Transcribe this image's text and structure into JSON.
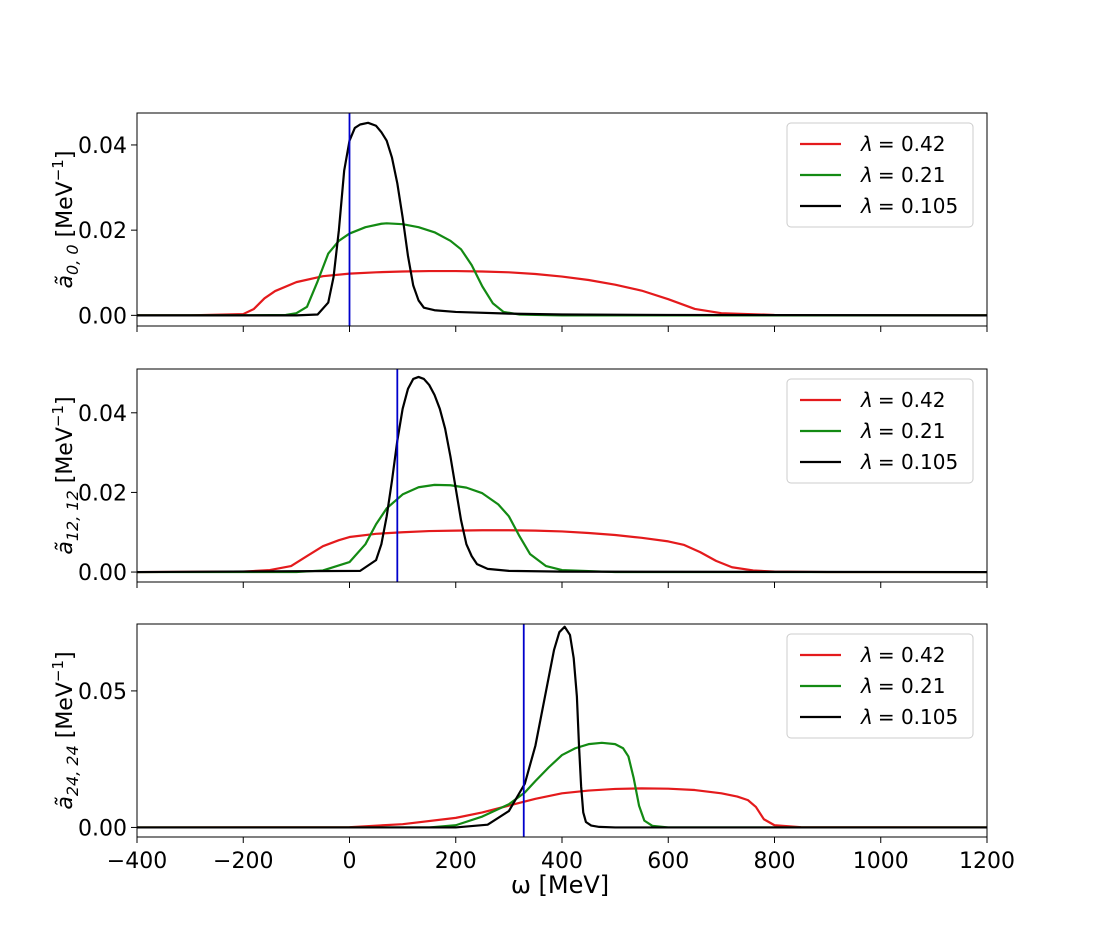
{
  "chart_data": {
    "type": "line",
    "xlabel": "ω [MeV]",
    "x_ticks": [
      "−400",
      "−200",
      "0",
      "200",
      "400",
      "600",
      "800",
      "1000",
      "1200"
    ],
    "xlim": [
      -400,
      1200
    ],
    "legend_position": "top-right",
    "series_colors": [
      "#e41a1c",
      "#138a13",
      "#000000"
    ],
    "vline_color": "#0000cc",
    "panels": [
      {
        "ylabel_main": "ã",
        "ylabel_sub": "0, 0",
        "ylabel_unit": " [MeV",
        "ylabel_sup": "−1",
        "ylabel_close": "]",
        "ylim": [
          -0.0025,
          0.0475
        ],
        "y_ticks": [
          "0.00",
          "0.02",
          "0.04"
        ],
        "y_tick_values": [
          0.0,
          0.02,
          0.04
        ],
        "vline": 0,
        "series": [
          {
            "name": "λ = 0.42",
            "legend_prefix": "λ",
            "legend_value": "= 0.42",
            "x": [
              -400,
              -300,
              -200,
              -180,
              -160,
              -140,
              -100,
              -50,
              0,
              50,
              100,
              150,
              200,
              250,
              300,
              350,
              400,
              450,
              500,
              550,
              600,
              650,
              700,
              800,
              900,
              1000,
              1200
            ],
            "y": [
              0,
              0,
              0.0003,
              0.0015,
              0.004,
              0.0057,
              0.0078,
              0.0092,
              0.0098,
              0.0101,
              0.0103,
              0.0104,
              0.0104,
              0.0103,
              0.0101,
              0.0097,
              0.0091,
              0.0083,
              0.0072,
              0.0058,
              0.0038,
              0.0015,
              0.0005,
              0.0001,
              0,
              0,
              0
            ]
          },
          {
            "name": "λ = 0.21",
            "legend_prefix": "λ",
            "legend_value": "= 0.21",
            "x": [
              -400,
              -200,
              -120,
              -100,
              -80,
              -60,
              -40,
              -20,
              0,
              30,
              60,
              70,
              100,
              130,
              160,
              190,
              210,
              230,
              250,
              270,
              290,
              320,
              350,
              400,
              600,
              1200
            ],
            "y": [
              0,
              0,
              0.0001,
              0.0005,
              0.002,
              0.008,
              0.0145,
              0.0175,
              0.0192,
              0.0207,
              0.0215,
              0.0216,
              0.0214,
              0.0207,
              0.0195,
              0.0175,
              0.0155,
              0.0118,
              0.0068,
              0.0028,
              0.0008,
              0.0002,
              0.0001,
              0,
              0,
              0
            ]
          },
          {
            "name": "λ = 0.105",
            "legend_prefix": "λ",
            "legend_value": "= 0.105",
            "x": [
              -400,
              -100,
              -60,
              -40,
              -30,
              -20,
              -10,
              0,
              10,
              20,
              35,
              50,
              60,
              70,
              80,
              90,
              100,
              110,
              120,
              130,
              140,
              160,
              200,
              300,
              400,
              600,
              1200
            ],
            "y": [
              0,
              0,
              0.0002,
              0.003,
              0.009,
              0.02,
              0.034,
              0.041,
              0.044,
              0.0448,
              0.0452,
              0.0445,
              0.043,
              0.041,
              0.037,
              0.031,
              0.023,
              0.014,
              0.007,
              0.0035,
              0.0018,
              0.0012,
              0.0008,
              0.0004,
              0.0002,
              0.0001,
              0
            ]
          }
        ]
      },
      {
        "ylabel_main": "ã",
        "ylabel_sub": "12, 12",
        "ylabel_unit": " [MeV",
        "ylabel_sup": "−1",
        "ylabel_close": "]",
        "ylim": [
          -0.0025,
          0.051
        ],
        "y_ticks": [
          "0.00",
          "0.02",
          "0.04"
        ],
        "y_tick_values": [
          0.0,
          0.02,
          0.04
        ],
        "vline": 90,
        "series": [
          {
            "name": "λ = 0.42",
            "legend_prefix": "λ",
            "legend_value": "= 0.42",
            "x": [
              -400,
              -200,
              -150,
              -110,
              -80,
              -50,
              -20,
              0,
              50,
              100,
              150,
              200,
              250,
              300,
              350,
              400,
              450,
              500,
              550,
              600,
              630,
              660,
              690,
              720,
              760,
              800,
              900,
              1200
            ],
            "y": [
              0,
              0.0001,
              0.0005,
              0.0015,
              0.004,
              0.0065,
              0.008,
              0.0088,
              0.0096,
              0.01,
              0.0103,
              0.0104,
              0.0105,
              0.0105,
              0.0104,
              0.0102,
              0.0098,
              0.0093,
              0.0086,
              0.0077,
              0.0068,
              0.005,
              0.0028,
              0.0012,
              0.0004,
              0.0001,
              0,
              0
            ]
          },
          {
            "name": "λ = 0.21",
            "legend_prefix": "λ",
            "legend_value": "= 0.21",
            "x": [
              -400,
              -100,
              -50,
              0,
              30,
              50,
              70,
              100,
              130,
              160,
              190,
              220,
              250,
              280,
              300,
              320,
              340,
              370,
              400,
              500,
              1200
            ],
            "y": [
              0,
              0,
              0.0004,
              0.0025,
              0.007,
              0.012,
              0.016,
              0.0195,
              0.0213,
              0.0219,
              0.0218,
              0.0212,
              0.0198,
              0.017,
              0.014,
              0.009,
              0.0045,
              0.0015,
              0.0005,
              0,
              0
            ]
          },
          {
            "name": "λ = 0.105",
            "legend_prefix": "λ",
            "legend_value": "= 0.105",
            "x": [
              -400,
              20,
              50,
              60,
              70,
              80,
              90,
              100,
              110,
              120,
              130,
              140,
              150,
              160,
              170,
              180,
              190,
              200,
              210,
              220,
              230,
              240,
              260,
              300,
              400,
              1200
            ],
            "y": [
              0,
              0.0003,
              0.003,
              0.007,
              0.014,
              0.023,
              0.033,
              0.041,
              0.046,
              0.0485,
              0.049,
              0.0485,
              0.047,
              0.0445,
              0.041,
              0.036,
              0.029,
              0.021,
              0.013,
              0.007,
              0.004,
              0.002,
              0.0008,
              0.0003,
              0.0001,
              0
            ]
          }
        ]
      },
      {
        "ylabel_main": "ã",
        "ylabel_sub": "24, 24",
        "ylabel_unit": " [MeV",
        "ylabel_sup": "−1",
        "ylabel_close": "]",
        "ylim": [
          -0.0035,
          0.0745
        ],
        "y_ticks": [
          "0.00",
          "0.05"
        ],
        "y_tick_values": [
          0.0,
          0.05
        ],
        "vline": 328,
        "series": [
          {
            "name": "λ = 0.42",
            "legend_prefix": "λ",
            "legend_value": "= 0.42",
            "x": [
              -400,
              0,
              100,
              200,
              250,
              300,
              350,
              400,
              450,
              500,
              550,
              600,
              650,
              700,
              730,
              750,
              765,
              780,
              800,
              850,
              1200
            ],
            "y": [
              0,
              0.0001,
              0.0012,
              0.0035,
              0.0055,
              0.008,
              0.0105,
              0.0125,
              0.0135,
              0.0141,
              0.0143,
              0.0142,
              0.0137,
              0.0125,
              0.0113,
              0.01,
              0.0075,
              0.003,
              0.0008,
              0.0001,
              0
            ]
          },
          {
            "name": "λ = 0.21",
            "legend_prefix": "λ",
            "legend_value": "= 0.21",
            "x": [
              -400,
              150,
              200,
              250,
              300,
              330,
              350,
              375,
              400,
              425,
              450,
              475,
              500,
              515,
              525,
              535,
              545,
              555,
              570,
              600,
              1200
            ],
            "y": [
              0,
              0,
              0.0008,
              0.004,
              0.0085,
              0.0128,
              0.017,
              0.022,
              0.0265,
              0.029,
              0.0305,
              0.031,
              0.0305,
              0.029,
              0.026,
              0.018,
              0.008,
              0.0025,
              0.0006,
              0,
              0
            ]
          },
          {
            "name": "λ = 0.105",
            "legend_prefix": "λ",
            "legend_value": "= 0.105",
            "x": [
              -400,
              200,
              260,
              300,
              330,
              350,
              370,
              385,
              395,
              405,
              415,
              422,
              428,
              432,
              436,
              440,
              445,
              455,
              470,
              500,
              1200
            ],
            "y": [
              0,
              0,
              0.001,
              0.006,
              0.016,
              0.03,
              0.05,
              0.065,
              0.0715,
              0.0735,
              0.0705,
              0.062,
              0.048,
              0.03,
              0.015,
              0.0055,
              0.002,
              0.0007,
              0.0002,
              0,
              0
            ]
          }
        ]
      }
    ]
  }
}
